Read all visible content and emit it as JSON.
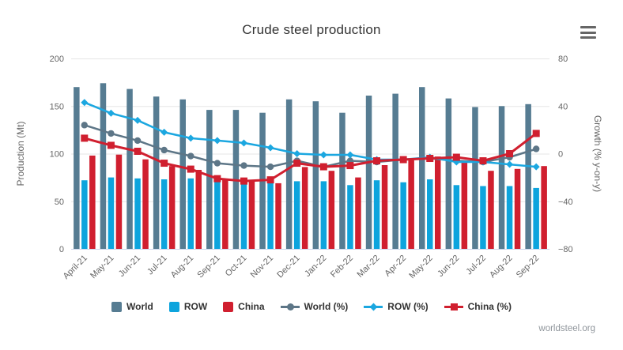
{
  "header": {
    "title": "Crude steel production"
  },
  "menu": {
    "icon": "hamburger-menu"
  },
  "watermark": "worldsteel.org",
  "chart_data": {
    "type": "combo-bar-line",
    "title": "Crude steel production",
    "categories": [
      "April-21",
      "May-21",
      "Jun-21",
      "Jul-21",
      "Aug-21",
      "Sep-21",
      "Oct-21",
      "Nov-21",
      "Dec-21",
      "Jan-22",
      "Feb-22",
      "Mar-22",
      "Apr-22",
      "May-22",
      "Jun-22",
      "Jul-22",
      "Aug-22",
      "Sep-22"
    ],
    "bar_series": [
      {
        "name": "World",
        "color": "#567c92",
        "values": [
          170,
          174,
          168,
          160,
          157,
          146,
          146,
          143,
          157,
          155,
          143,
          161,
          163,
          170,
          158,
          149,
          150,
          152
        ]
      },
      {
        "name": "ROW",
        "color": "#0da4dd",
        "values": [
          72,
          75,
          74,
          73,
          74,
          72,
          72,
          72,
          71,
          71,
          67,
          72,
          70,
          73,
          67,
          66,
          66,
          64
        ]
      },
      {
        "name": "China",
        "color": "#d01f2f",
        "values": [
          98,
          99,
          94,
          87,
          83,
          73,
          71,
          69,
          86,
          82,
          75,
          88,
          93,
          97,
          91,
          82,
          84,
          87
        ]
      }
    ],
    "line_series": [
      {
        "name": "World (%)",
        "color": "#5d7687",
        "marker": "circle",
        "values": [
          24,
          17,
          11,
          3,
          -2,
          -8,
          -10,
          -11,
          -6,
          -11,
          -6,
          -7,
          -5,
          -4,
          -6,
          -7,
          -3,
          4
        ]
      },
      {
        "name": "ROW (%)",
        "color": "#1ba7e0",
        "marker": "diamond",
        "values": [
          43,
          34,
          28,
          18,
          13,
          11,
          9,
          5,
          0,
          -1,
          -1,
          -5,
          -5,
          -3,
          -7,
          -7,
          -9,
          -11
        ]
      },
      {
        "name": "China (%)",
        "color": "#d01f2f",
        "marker": "square",
        "values": [
          13,
          7,
          2,
          -8,
          -13,
          -21,
          -23,
          -22,
          -8,
          -11,
          -10,
          -6,
          -5,
          -4,
          -3,
          -6,
          0,
          17
        ]
      }
    ],
    "left_axis": {
      "title": "Production (Mt)",
      "ticks": [
        0,
        50,
        100,
        150,
        200
      ],
      "range": [
        0,
        200
      ]
    },
    "right_axis": {
      "title": "Growth (% y-on-y)",
      "ticks": [
        -80,
        -40,
        0,
        40,
        80
      ],
      "range": [
        -80,
        80
      ]
    },
    "legend": [
      {
        "label": "World",
        "symbol": "square",
        "color": "#567c92"
      },
      {
        "label": "ROW",
        "symbol": "square",
        "color": "#0da4dd"
      },
      {
        "label": "China",
        "symbol": "square",
        "color": "#d01f2f"
      },
      {
        "label": "World (%)",
        "symbol": "line-circle",
        "color": "#5d7687"
      },
      {
        "label": "ROW (%)",
        "symbol": "line-diamond",
        "color": "#1ba7e0"
      },
      {
        "label": "China (%)",
        "symbol": "line-square",
        "color": "#d01f2f"
      }
    ],
    "grid": {
      "color": "#e6e6e6",
      "axis_line_color": "#ccd6eb",
      "label_color": "#666666"
    },
    "legend_position": "bottom"
  }
}
